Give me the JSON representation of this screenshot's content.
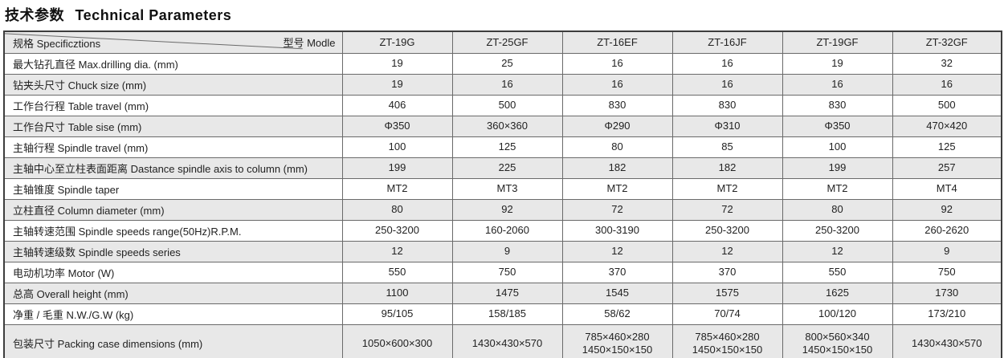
{
  "title": {
    "zh": "技术参数",
    "en": "Technical Parameters"
  },
  "colors": {
    "stripe_gray": "#e8e8e8",
    "outer_border": "#3d3d3d",
    "inner_border": "#6a6a6a",
    "text": "#222222"
  },
  "table": {
    "header": {
      "spec_label": "规格 Specificztions",
      "model_label": "型号 Modle",
      "models": [
        "ZT-19G",
        "ZT-25GF",
        "ZT-16EF",
        "ZT-16JF",
        "ZT-19GF",
        "ZT-32GF"
      ]
    },
    "rows": [
      {
        "label_zh": "最大钻孔直径",
        "label_en": "Max.drilling dia. (mm)",
        "values": [
          "19",
          "25",
          "16",
          "16",
          "19",
          "32"
        ]
      },
      {
        "label_zh": "钻夹头尺寸",
        "label_en": "Chuck size (mm)",
        "values": [
          "19",
          "16",
          "16",
          "16",
          "16",
          "16"
        ]
      },
      {
        "label_zh": "工作台行程",
        "label_en": "Table travel (mm)",
        "values": [
          "406",
          "500",
          "830",
          "830",
          "830",
          "500"
        ]
      },
      {
        "label_zh": "工作台尺寸",
        "label_en": "Table sise (mm)",
        "values": [
          "Φ350",
          "360×360",
          "Φ290",
          "Φ310",
          "Φ350",
          "470×420"
        ]
      },
      {
        "label_zh": "主轴行程",
        "label_en": "Spindle travel (mm)",
        "values": [
          "100",
          "125",
          "80",
          "85",
          "100",
          "125"
        ]
      },
      {
        "label_zh": "主轴中心至立柱表面距离",
        "label_en": "Dastance spindle axis to column (mm)",
        "values": [
          "199",
          "225",
          "182",
          "182",
          "199",
          "257"
        ]
      },
      {
        "label_zh": "主轴锥度",
        "label_en": "Spindle taper",
        "values": [
          "MT2",
          "MT3",
          "MT2",
          "MT2",
          "MT2",
          "MT4"
        ]
      },
      {
        "label_zh": "立柱直径",
        "label_en": "Column diameter (mm)",
        "values": [
          "80",
          "92",
          "72",
          "72",
          "80",
          "92"
        ]
      },
      {
        "label_zh": "主轴转速范围",
        "label_en": "Spindle speeds range(50Hz)R.P.M.",
        "values": [
          "250-3200",
          "160-2060",
          "300-3190",
          "250-3200",
          "250-3200",
          "260-2620"
        ]
      },
      {
        "label_zh": "主轴转速级数",
        "label_en": "Spindle speeds series",
        "values": [
          "12",
          "9",
          "12",
          "12",
          "12",
          "9"
        ]
      },
      {
        "label_zh": "电动机功率",
        "label_en": "Motor (W)",
        "values": [
          "550",
          "750",
          "370",
          "370",
          "550",
          "750"
        ]
      },
      {
        "label_zh": "总高",
        "label_en": "Overall height (mm)",
        "values": [
          "1100",
          "1475",
          "1545",
          "1575",
          "1625",
          "1730"
        ]
      },
      {
        "label_zh": "净重 / 毛重",
        "label_en": "N.W./G.W (kg)",
        "values": [
          "95/105",
          "158/185",
          "58/62",
          "70/74",
          "100/120",
          "173/210"
        ]
      },
      {
        "label_zh": "包装尺寸",
        "label_en": "Packing case dimensions (mm)",
        "values": [
          "1050×600×300",
          "1430×430×570",
          "785×460×280\n1450×150×150",
          "785×460×280\n1450×150×150",
          "800×560×340\n1450×150×150",
          "1430×430×570"
        ]
      }
    ]
  }
}
